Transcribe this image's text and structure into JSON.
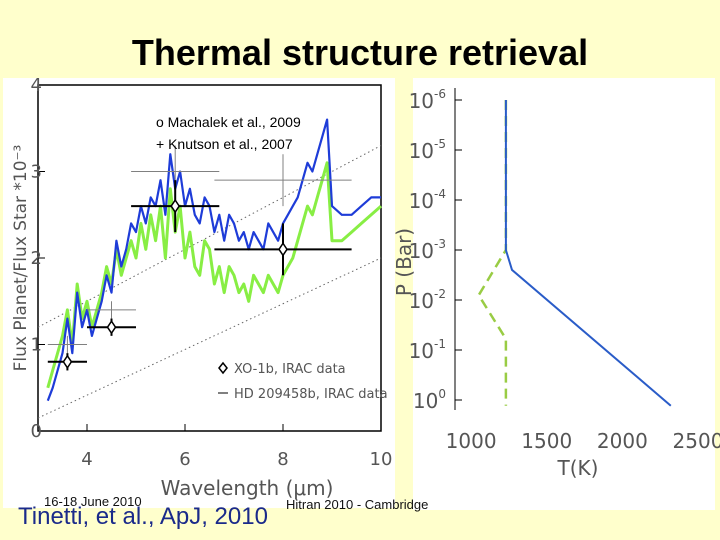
{
  "slide": {
    "title": "Thermal structure retrieval",
    "footer_date": "16-18 June 2010",
    "footer_conference": "Hitran 2010 - Cambridge",
    "citation": "Tinetti, et al., ApJ, 2010"
  },
  "chart_data": [
    {
      "type": "line",
      "xlabel": "Wavelength (μm)",
      "ylabel": "Flux Planet/Flux Star *10⁻³",
      "xlim": [
        3,
        10
      ],
      "ylim": [
        0,
        4
      ],
      "x_ticks": [
        "4",
        "6",
        "8",
        "10"
      ],
      "y_ticks": [
        "0",
        "1",
        "2",
        "3",
        "4"
      ],
      "annotations": [
        "o Machalek et al., 2009",
        "+ Knutson et al., 2007"
      ],
      "legend": [
        {
          "label": "XO-1b, IRAC data",
          "marker": "diamond"
        },
        {
          "label": "HD 209458b, IRAC data",
          "marker": "cross"
        }
      ],
      "colors": {
        "model_blue": "#1e3cd8",
        "model_green": "#88ee44",
        "data": "#000000",
        "grey_data": "#808080"
      },
      "series": [
        {
          "color": "blue",
          "x": [
            3.2,
            3.3,
            3.4,
            3.5,
            3.6,
            3.7,
            3.8,
            3.9,
            4.0,
            4.1,
            4.2,
            4.3,
            4.4,
            4.5,
            4.6,
            4.7,
            4.8,
            4.9,
            5.0,
            5.1,
            5.2,
            5.3,
            5.4,
            5.5,
            5.6,
            5.7,
            5.8,
            5.9,
            6.0,
            6.1,
            6.2,
            6.3,
            6.4,
            6.5,
            6.6,
            6.7,
            6.8,
            6.9,
            7.0,
            7.1,
            7.2,
            7.3,
            7.4,
            7.5,
            7.6,
            7.7,
            7.8,
            7.9,
            8.0,
            8.1,
            8.2,
            8.3,
            8.4,
            8.5,
            8.6,
            8.7,
            8.8,
            8.9,
            9.0,
            9.2,
            9.4,
            9.6,
            9.8,
            10.0
          ],
          "y": [
            0.35,
            0.5,
            0.7,
            0.9,
            1.3,
            0.9,
            1.6,
            1.2,
            1.4,
            1.1,
            1.3,
            1.5,
            1.8,
            1.6,
            2.2,
            1.9,
            2.1,
            2.4,
            2.3,
            2.6,
            2.4,
            2.7,
            2.6,
            2.9,
            2.5,
            3.2,
            2.8,
            3.0,
            2.6,
            2.8,
            2.5,
            2.4,
            2.7,
            2.6,
            2.3,
            2.5,
            2.2,
            2.5,
            2.4,
            2.2,
            2.3,
            2.1,
            2.3,
            2.2,
            2.1,
            2.4,
            2.3,
            2.2,
            2.4,
            2.5,
            2.6,
            2.7,
            2.9,
            3.1,
            3.0,
            3.2,
            3.4,
            3.6,
            2.6,
            2.5,
            2.5,
            2.6,
            2.7,
            2.7
          ]
        },
        {
          "color": "green",
          "x": [
            3.2,
            3.3,
            3.4,
            3.5,
            3.6,
            3.7,
            3.8,
            3.9,
            4.0,
            4.1,
            4.2,
            4.3,
            4.4,
            4.5,
            4.6,
            4.7,
            4.8,
            4.9,
            5.0,
            5.1,
            5.2,
            5.3,
            5.4,
            5.5,
            5.6,
            5.7,
            5.8,
            5.9,
            6.0,
            6.1,
            6.2,
            6.3,
            6.4,
            6.5,
            6.6,
            6.7,
            6.8,
            6.9,
            7.0,
            7.1,
            7.2,
            7.3,
            7.4,
            7.5,
            7.6,
            7.7,
            7.8,
            7.9,
            8.0,
            8.1,
            8.2,
            8.3,
            8.4,
            8.5,
            8.6,
            8.7,
            8.8,
            8.9,
            9.0,
            9.2,
            9.4,
            9.6,
            9.8,
            10.0
          ],
          "y": [
            0.5,
            0.7,
            0.9,
            1.1,
            1.4,
            1.0,
            1.7,
            1.3,
            1.5,
            1.2,
            1.4,
            1.6,
            1.9,
            1.7,
            2.1,
            1.8,
            2.0,
            2.2,
            2.0,
            2.4,
            2.1,
            2.5,
            2.2,
            2.6,
            2.0,
            2.8,
            2.3,
            2.6,
            2.0,
            2.3,
            1.9,
            1.8,
            2.2,
            2.1,
            1.7,
            1.9,
            1.6,
            1.9,
            1.8,
            1.6,
            1.7,
            1.5,
            1.8,
            1.7,
            1.6,
            1.8,
            1.7,
            1.6,
            1.8,
            1.9,
            2.0,
            2.2,
            2.4,
            2.6,
            2.5,
            2.7,
            2.9,
            3.1,
            2.2,
            2.2,
            2.3,
            2.4,
            2.5,
            2.6
          ]
        },
        {
          "marker": "diamond",
          "x": [
            3.6,
            4.5,
            5.8,
            8.0
          ],
          "y": [
            0.8,
            1.2,
            2.6,
            2.1
          ],
          "xerr": [
            0.4,
            0.5,
            0.9,
            1.4
          ],
          "yerr": [
            0.1,
            0.1,
            0.3,
            0.3
          ]
        },
        {
          "marker": "cross",
          "x": [
            3.6,
            4.5,
            5.8,
            8.0
          ],
          "y": [
            1.0,
            1.4,
            3.0,
            2.9
          ],
          "xerr": [
            0.4,
            0.5,
            0.9,
            1.4
          ],
          "yerr": [
            0.1,
            0.1,
            0.3,
            0.3
          ]
        },
        {
          "style": "dotted",
          "x": [
            3.0,
            10.0
          ],
          "y": [
            1.2,
            3.3
          ]
        },
        {
          "style": "dotted",
          "x": [
            3.0,
            10.0
          ],
          "y": [
            0.15,
            2.0
          ]
        }
      ]
    },
    {
      "type": "line",
      "xlabel": "T(K)",
      "ylabel": "P (Bar)",
      "xlim": [
        900,
        2500
      ],
      "y_log": true,
      "y_inverted": true,
      "ylim": [
        1e-06,
        1
      ],
      "x_ticks": [
        "1000",
        "1500",
        "2000",
        "2500"
      ],
      "y_tick_exponents": [
        "-6",
        "-5",
        "-4",
        "-3",
        "-2",
        "-1",
        "0"
      ],
      "series": [
        {
          "color": "blue",
          "style": "solid",
          "x": [
            1230,
            1230,
            1270,
            2320
          ],
          "y": [
            1e-06,
            0.001,
            0.0025,
            1.3
          ]
        },
        {
          "color": "green",
          "style": "dashed",
          "x": [
            1230,
            1230,
            1050,
            1230,
            1230
          ],
          "y": [
            1e-06,
            0.001,
            0.008,
            0.06,
            1.3
          ]
        }
      ]
    }
  ]
}
